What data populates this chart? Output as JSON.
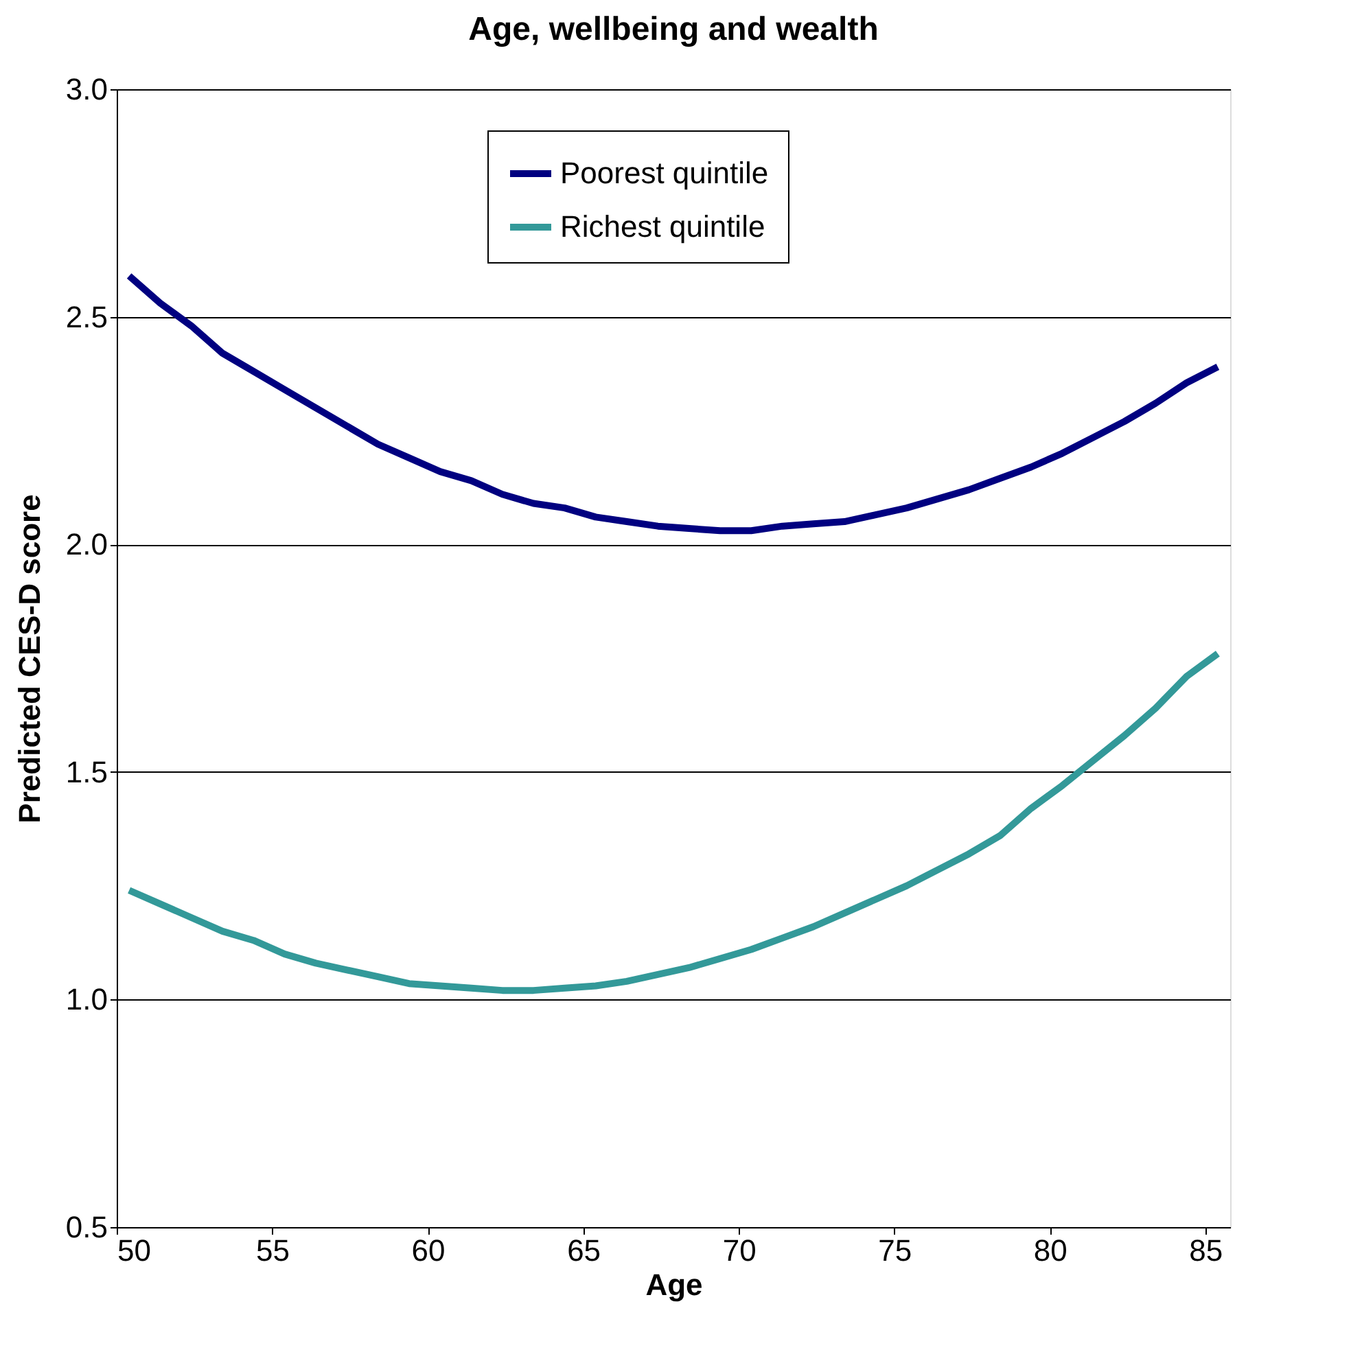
{
  "chart_data": {
    "type": "line",
    "title": "Age, wellbeing and wealth",
    "xlabel": "Age",
    "ylabel": "Predicted CES-D score",
    "x": [
      50.4,
      51.4,
      52.4,
      53.4,
      54.4,
      55.4,
      56.4,
      57.4,
      58.4,
      59.4,
      60.4,
      61.4,
      62.4,
      63.4,
      64.4,
      65.4,
      66.4,
      67.4,
      68.4,
      69.4,
      70.4,
      71.4,
      72.4,
      73.4,
      74.4,
      75.4,
      76.4,
      77.4,
      78.4,
      79.4,
      80.4,
      81.4,
      82.4,
      83.4,
      84.4,
      85.4
    ],
    "series": [
      {
        "name": "Poorest quintile",
        "color": "#000080",
        "values": [
          2.59,
          2.53,
          2.48,
          2.42,
          2.38,
          2.34,
          2.3,
          2.26,
          2.22,
          2.19,
          2.16,
          2.14,
          2.11,
          2.09,
          2.08,
          2.06,
          2.05,
          2.04,
          2.035,
          2.03,
          2.03,
          2.04,
          2.045,
          2.05,
          2.065,
          2.08,
          2.1,
          2.12,
          2.145,
          2.17,
          2.2,
          2.235,
          2.27,
          2.31,
          2.355,
          2.39
        ]
      },
      {
        "name": "Richest quintile",
        "color": "#339999",
        "values": [
          1.24,
          1.21,
          1.18,
          1.15,
          1.13,
          1.1,
          1.08,
          1.065,
          1.05,
          1.035,
          1.03,
          1.025,
          1.02,
          1.02,
          1.025,
          1.03,
          1.04,
          1.055,
          1.07,
          1.09,
          1.11,
          1.135,
          1.16,
          1.19,
          1.22,
          1.25,
          1.285,
          1.32,
          1.36,
          1.42,
          1.47,
          1.525,
          1.58,
          1.64,
          1.71,
          1.76
        ]
      }
    ],
    "xlim": [
      50,
      85.8
    ],
    "xticks": [
      50,
      55,
      60,
      65,
      70,
      75,
      80,
      85
    ],
    "ylim": [
      0.5,
      3.0
    ],
    "yticks": [
      {
        "value": 0.5,
        "label": "0.5"
      },
      {
        "value": 1.0,
        "label": "1.0"
      },
      {
        "value": 1.5,
        "label": "1.5"
      },
      {
        "value": 2.0,
        "label": "2.0"
      },
      {
        "value": 2.5,
        "label": "2.5"
      },
      {
        "value": 3.0,
        "label": "3.0"
      }
    ],
    "grid": "y",
    "legend": "top",
    "marker": "none",
    "line_style": "solid"
  }
}
